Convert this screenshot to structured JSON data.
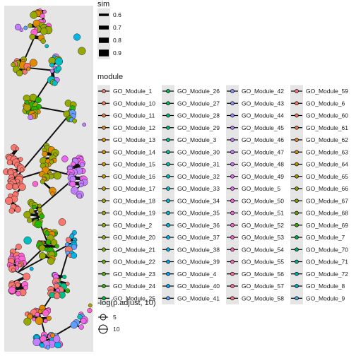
{
  "chart_data": {
    "type": "scatter",
    "panel_background": "#e5e5e5",
    "legend_placement": "right",
    "size_legend": {
      "title": "sim",
      "entries": [
        "0.6",
        "0.7",
        "0.8",
        "0.9"
      ],
      "values": [
        0.6,
        0.7,
        0.8,
        0.9
      ]
    },
    "color_legend": {
      "title": "module",
      "columns": [
        [
          "GO_Module_1",
          "GO_Module_10",
          "GO_Module_11",
          "GO_Module_12",
          "GO_Module_13",
          "GO_Module_14",
          "GO_Module_15",
          "GO_Module_16",
          "GO_Module_17",
          "GO_Module_18",
          "GO_Module_19",
          "GO_Module_2",
          "GO_Module_20",
          "GO_Module_21",
          "GO_Module_22",
          "GO_Module_23",
          "GO_Module_24",
          "GO_Module_25"
        ],
        [
          "GO_Module_26",
          "GO_Module_27",
          "GO_Module_28",
          "GO_Module_29",
          "GO_Module_3",
          "GO_Module_30",
          "GO_Module_31",
          "GO_Module_32",
          "GO_Module_33",
          "GO_Module_34",
          "GO_Module_35",
          "GO_Module_36",
          "GO_Module_37",
          "GO_Module_38",
          "GO_Module_39",
          "GO_Module_4",
          "GO_Module_40",
          "GO_Module_41"
        ],
        [
          "GO_Module_42",
          "GO_Module_43",
          "GO_Module_44",
          "GO_Module_45",
          "GO_Module_46",
          "GO_Module_47",
          "GO_Module_48",
          "GO_Module_49",
          "GO_Module_5",
          "GO_Module_50",
          "GO_Module_51",
          "GO_Module_52",
          "GO_Module_53",
          "GO_Module_54",
          "GO_Module_55",
          "GO_Module_56",
          "GO_Module_57",
          "GO_Module_58"
        ],
        [
          "GO_Module_59",
          "GO_Module_6",
          "GO_Module_60",
          "GO_Module_61",
          "GO_Module_62",
          "GO_Module_63",
          "GO_Module_64",
          "GO_Module_65",
          "GO_Module_66",
          "GO_Module_67",
          "GO_Module_68",
          "GO_Module_69",
          "GO_Module_7",
          "GO_Module_70",
          "GO_Module_71",
          "GO_Module_72",
          "GO_Module_8",
          "GO_Module_9"
        ]
      ],
      "column_colors": [
        [
          "#F8766D",
          "#F37B59",
          "#ED8141",
          "#E7861B",
          "#E08B00",
          "#D89000",
          "#CF9400",
          "#C59900",
          "#BB9D00",
          "#B0A100",
          "#A3A500",
          "#96A900",
          "#88AC00",
          "#77AF00",
          "#64B200",
          "#4CB500",
          "#25B700",
          "#00BA38"
        ],
        [
          "#00BC50",
          "#00BE63",
          "#00BF74",
          "#00C083",
          "#00C091",
          "#00C19F",
          "#00C1AB",
          "#00C0B7",
          "#00BFC2",
          "#00BECC",
          "#00BCD6",
          "#00B9E0",
          "#00B6E9",
          "#00B2F1",
          "#00ADF8",
          "#00A8FF",
          "#00A2FF",
          "#619CFF"
        ],
        [
          "#7D96FF",
          "#928FFF",
          "#A58AFF",
          "#B584FF",
          "#C37EFF",
          "#D078FF",
          "#DB72FB",
          "#E56DF5",
          "#EE67EE",
          "#F663E6",
          "#FC61DD",
          "#FF61D2",
          "#FF62C7",
          "#FF64BB",
          "#FF67AE",
          "#FF6AA0",
          "#FF6C92",
          "#FF6F83"
        ],
        [
          "#FA7274",
          "#F47669",
          "#EE7A5D",
          "#E27F4A",
          "#D78436",
          "#C98A1A",
          "#BB9000",
          "#A89500",
          "#949A00",
          "#7E9F00",
          "#62A300",
          "#3CA700",
          "#00AA47",
          "#00AC73",
          "#00AD94",
          "#00ADB0",
          "#00ACC8",
          "#4AA8DF"
        ]
      ]
    },
    "point_size_legend": {
      "title": "-log(p.adjust, 10)",
      "entries": [
        "5",
        "10"
      ],
      "values": [
        5,
        10
      ]
    }
  }
}
